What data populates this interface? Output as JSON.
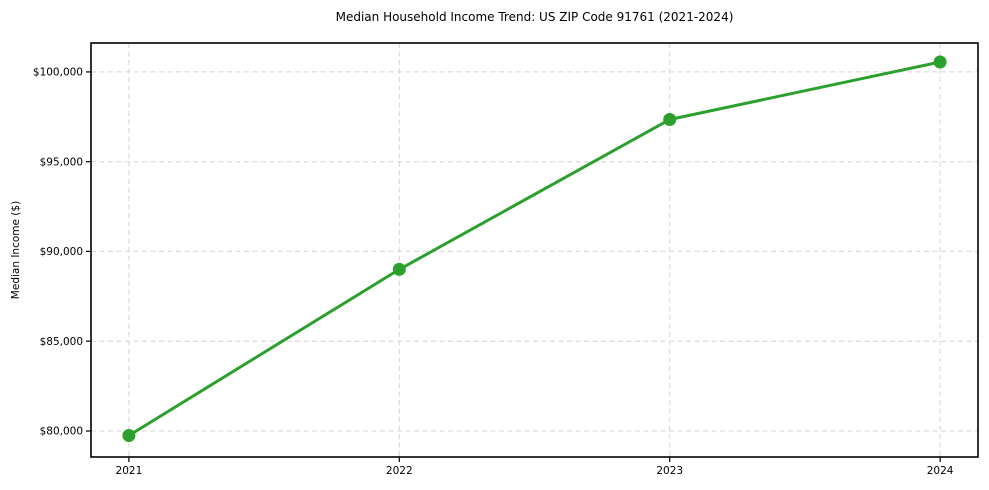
{
  "chart_data": {
    "type": "line",
    "title": "Median Household Income Trend: US ZIP Code 91761 (2021-2024)",
    "xlabel": "",
    "ylabel": "Median Income ($)",
    "x": [
      2021,
      2022,
      2023,
      2024
    ],
    "x_tick_labels": [
      "2021",
      "2022",
      "2023",
      "2024"
    ],
    "values": [
      79750,
      89000,
      97350,
      100550
    ],
    "y_ticks": [
      80000,
      85000,
      90000,
      95000,
      100000
    ],
    "y_tick_labels": [
      "$80,000",
      "$85,000",
      "$90,000",
      "$95,000",
      "$100,000"
    ],
    "xlim": [
      2020.86,
      2024.14
    ],
    "ylim": [
      78550,
      101610
    ],
    "grid": true,
    "grid_style": "dashed",
    "legend": false,
    "marker": "circle"
  },
  "colors": {
    "line": "#2ca02c",
    "marker": "#2ca02c",
    "grid": "#d4d4d4",
    "axis": "#000000",
    "text": "#000000",
    "background": "#ffffff"
  }
}
